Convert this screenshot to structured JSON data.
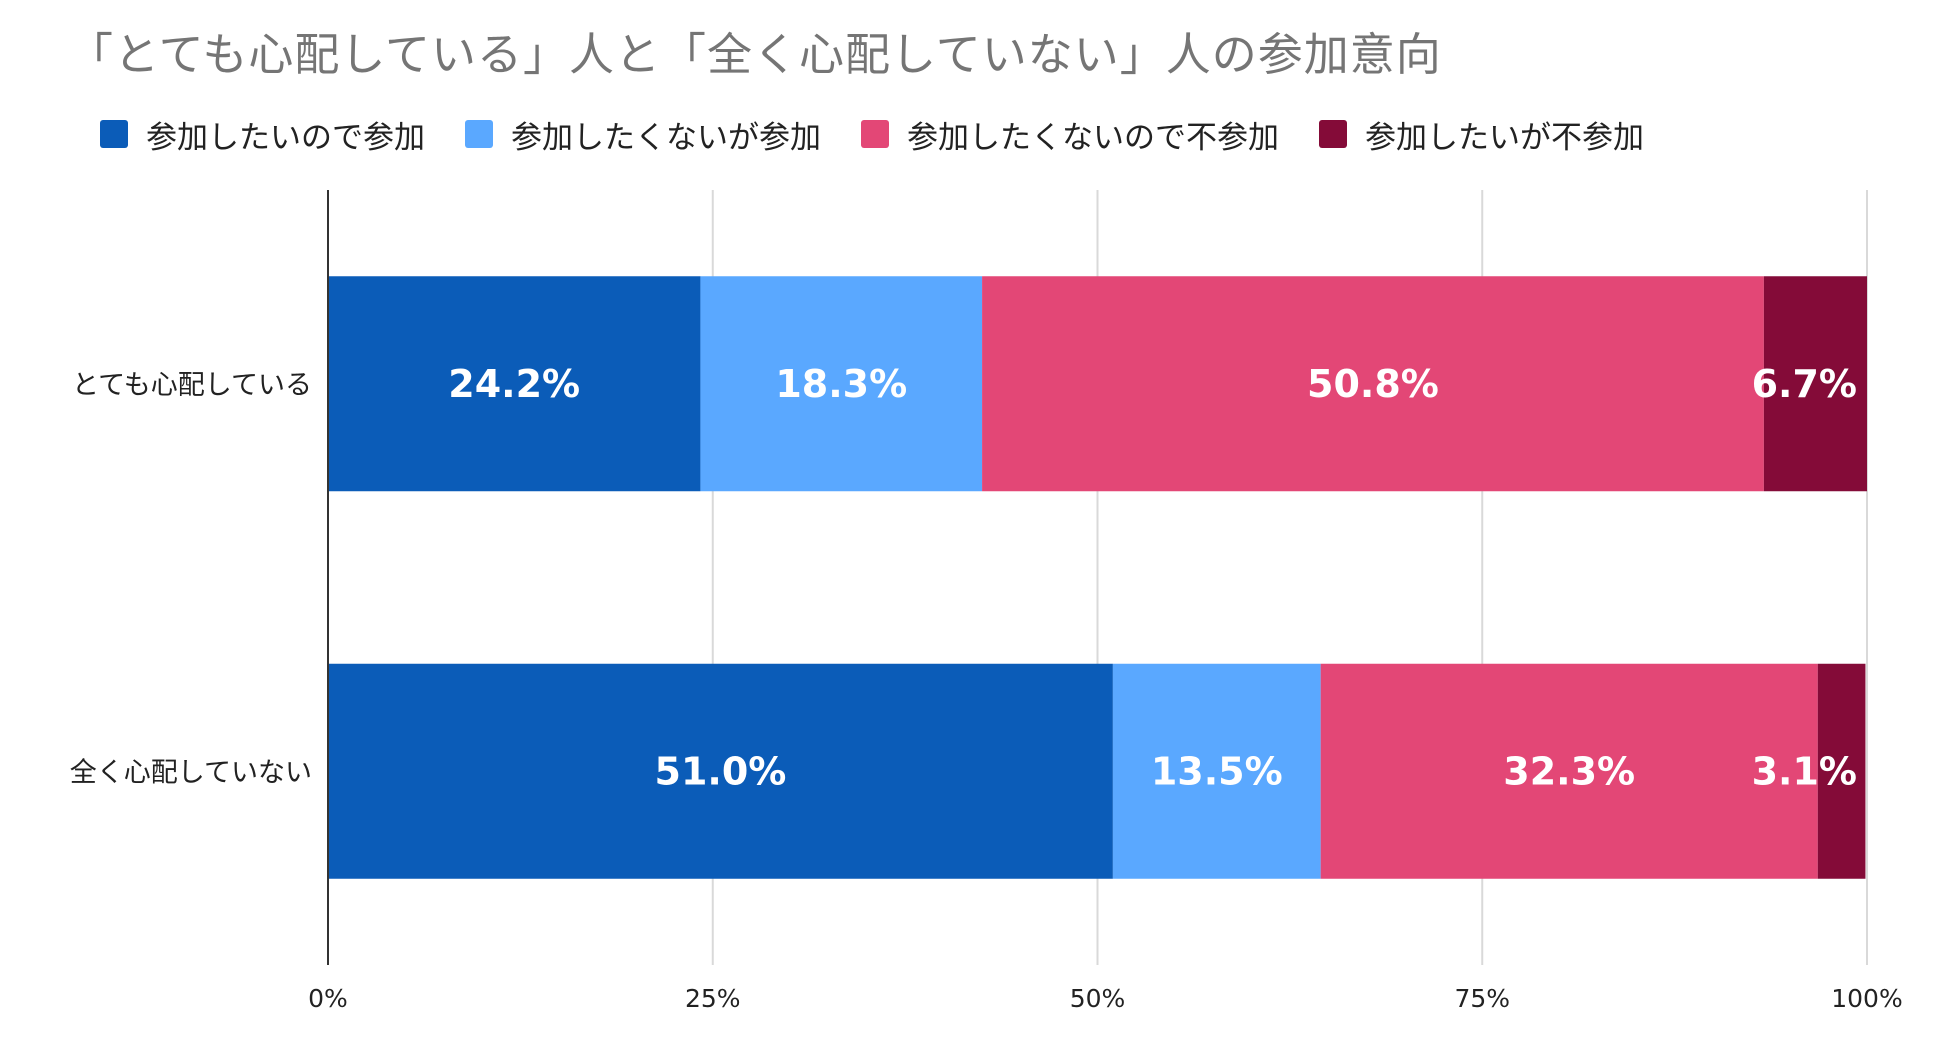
{
  "chart_data": {
    "type": "bar",
    "orientation": "horizontal",
    "stacked": true,
    "title": "「とても心配している」人と「全く心配していない」人の参加意向",
    "categories": [
      "とても心配している",
      "全く心配していない"
    ],
    "series": [
      {
        "name": "参加したいので参加",
        "color": "#0b5cb8",
        "values": [
          24.2,
          51.0
        ],
        "labels": [
          "24.2%",
          "51.0%"
        ]
      },
      {
        "name": "参加したくないが参加",
        "color": "#5aa8ff",
        "values": [
          18.3,
          13.5
        ],
        "labels": [
          "18.3%",
          "13.5%"
        ]
      },
      {
        "name": "参加したくないので不参加",
        "color": "#e34776",
        "values": [
          50.8,
          32.3
        ],
        "labels": [
          "50.8%",
          "32.3%"
        ]
      },
      {
        "name": "参加したいが不参加",
        "color": "#840b38",
        "values": [
          6.7,
          3.1
        ],
        "labels": [
          "6.7%",
          "3.1%"
        ]
      }
    ],
    "xlim": [
      0,
      100
    ],
    "xticks": [
      0,
      25,
      50,
      75,
      100
    ],
    "xtick_labels": [
      "0%",
      "25%",
      "50%",
      "75%",
      "100%"
    ],
    "xlabel": "",
    "ylabel": "",
    "grid": true,
    "legend_position": "top-left"
  }
}
